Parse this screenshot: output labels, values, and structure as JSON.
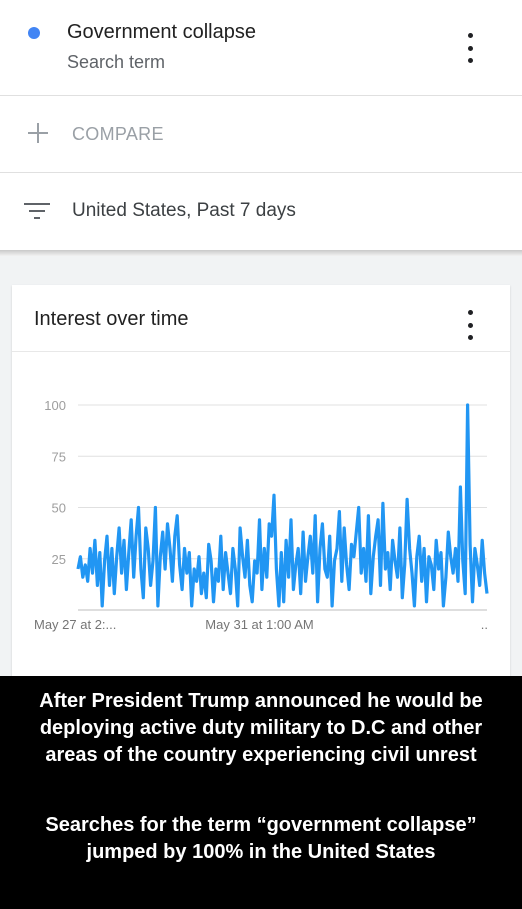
{
  "search_term": {
    "name": "Government collapse",
    "type": "Search term",
    "dot_color": "#4285f4"
  },
  "compare": {
    "label": "COMPARE"
  },
  "filter": {
    "label": "United States, Past 7 days"
  },
  "card": {
    "title": "Interest over time"
  },
  "chart_data": {
    "type": "line",
    "title": "Interest over time",
    "xlabel": "",
    "ylabel": "",
    "ylim": [
      0,
      100
    ],
    "y_ticks": [
      25,
      50,
      75,
      100
    ],
    "x_tick_labels": [
      {
        "label": "May 27 at 2:...",
        "index": 0
      },
      {
        "label": "May 31 at 1:00 AM",
        "index": 75
      },
      {
        "label": "..",
        "index": 163
      }
    ],
    "grid": true,
    "line_color": "#2196f3",
    "series": [
      {
        "values": [
          20,
          26,
          16,
          22,
          14,
          30,
          18,
          34,
          12,
          28,
          2,
          24,
          36,
          12,
          30,
          8,
          26,
          40,
          18,
          34,
          10,
          28,
          44,
          16,
          36,
          50,
          20,
          6,
          40,
          30,
          12,
          24,
          50,
          2,
          26,
          38,
          20,
          42,
          30,
          14,
          36,
          46,
          22,
          10,
          30,
          18,
          28,
          2,
          20,
          14,
          26,
          8,
          18,
          6,
          32,
          24,
          4,
          20,
          14,
          36,
          10,
          28,
          18,
          8,
          30,
          20,
          2,
          40,
          26,
          16,
          34,
          12,
          4,
          24,
          18,
          44,
          10,
          30,
          16,
          42,
          36,
          56,
          20,
          2,
          28,
          4,
          34,
          16,
          44,
          10,
          22,
          30,
          8,
          38,
          14,
          26,
          36,
          18,
          46,
          4,
          30,
          42,
          20,
          16,
          36,
          2,
          24,
          30,
          48,
          14,
          40,
          22,
          10,
          32,
          26,
          38,
          50,
          18,
          30,
          14,
          46,
          8,
          26,
          36,
          44,
          12,
          52,
          20,
          28,
          10,
          34,
          24,
          16,
          40,
          6,
          22,
          54,
          30,
          18,
          2,
          26,
          36,
          14,
          30,
          4,
          26,
          22,
          10,
          34,
          20,
          28,
          2,
          16,
          38,
          26,
          18,
          30,
          14,
          60,
          24,
          8,
          100,
          32,
          4,
          30,
          22,
          12,
          34,
          18,
          8
        ]
      }
    ]
  }
}
